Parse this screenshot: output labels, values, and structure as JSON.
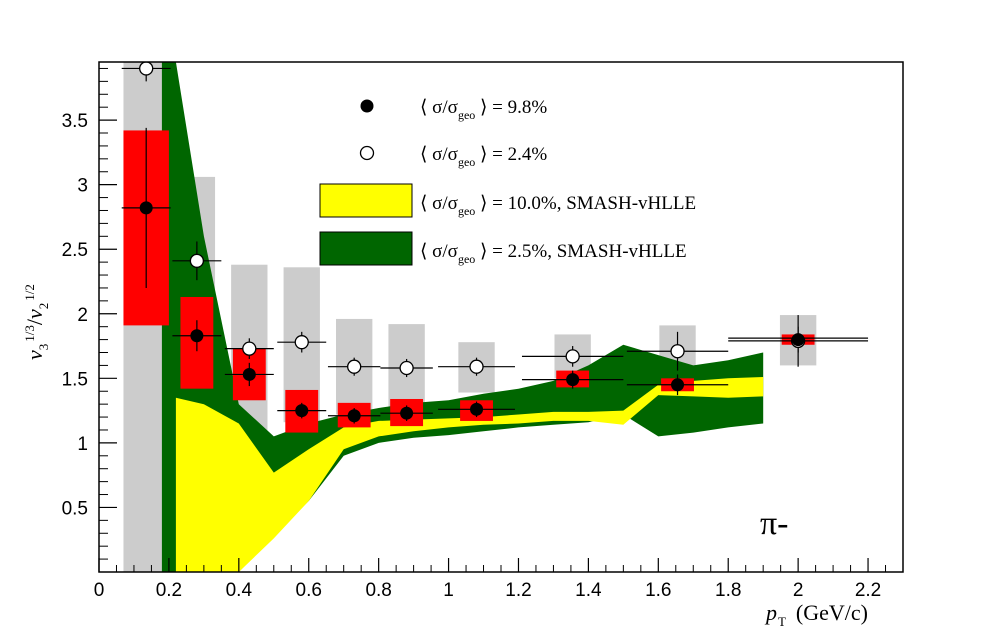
{
  "chart_data": {
    "type": "scatter",
    "title": "",
    "xlabel": "p_T (GeV/c)",
    "ylabel": "v_3^{1/3}/v_2^{1/2}",
    "xlim": [
      0,
      2.3
    ],
    "ylim": [
      0,
      3.95
    ],
    "x_ticks": [
      0,
      0.2,
      0.4,
      0.6,
      0.8,
      1,
      1.2,
      1.4,
      1.6,
      1.8,
      2,
      2.2
    ],
    "x_tick_labels": [
      "0",
      "0.2",
      "0.4",
      "0.6",
      "0.8",
      "1",
      "1.2",
      "1.4",
      "1.6",
      "1.8",
      "2",
      "2.2"
    ],
    "y_ticks": [
      0.5,
      1,
      1.5,
      2,
      2.5,
      3,
      3.5
    ],
    "y_tick_labels": [
      "0.5",
      "1",
      "1.5",
      "2",
      "2.5",
      "3",
      "3.5"
    ],
    "annotation": "π-",
    "axis_labels": {
      "x_main": "p",
      "x_sub": "T",
      "x_unit": "(GeV/c)",
      "y_v3": "v",
      "y_v3_sub": "3",
      "y_v3_sup": "1/3",
      "y_slash": "/",
      "y_v2": "v",
      "y_v2_sub": "2",
      "y_v2_sup": "1/2"
    },
    "legend": [
      {
        "key": "filled",
        "text": "⟨ σ/σgeo ⟩ = 9.8%",
        "pre": "⟨ σ/σ",
        "sub": "geo",
        "post": " ⟩ = 9.8%"
      },
      {
        "key": "open",
        "text": "⟨ σ/σgeo ⟩ = 2.4%",
        "pre": "⟨ σ/σ",
        "sub": "geo",
        "post": " ⟩ = 2.4%"
      },
      {
        "key": "yellow",
        "text": "⟨ σ/σgeo ⟩ = 10.0%, SMASH-vHLLE",
        "pre": "⟨ σ/σ",
        "sub": "geo",
        "post": " ⟩ = 10.0%, SMASH-vHLLE"
      },
      {
        "key": "green",
        "text": "⟨ σ/σgeo ⟩ = 2.5%, SMASH-vHLLE",
        "pre": "⟨ σ/σ",
        "sub": "geo",
        "post": " ⟩ = 2.5%, SMASH-vHLLE"
      }
    ],
    "series": [
      {
        "name": "⟨ σ/σgeo ⟩ = 9.8%",
        "marker": "filled-circle",
        "sys_color": "#ff0000",
        "points": [
          {
            "x": 0.135,
            "y": 2.82,
            "xerr": 0.07,
            "yerr": 0.62,
            "sys_lo": 1.91,
            "sys_hi": 3.42
          },
          {
            "x": 0.28,
            "y": 1.83,
            "xerr": 0.07,
            "yerr": 0.12,
            "sys_lo": 1.42,
            "sys_hi": 2.13
          },
          {
            "x": 0.43,
            "y": 1.53,
            "xerr": 0.07,
            "yerr": 0.09,
            "sys_lo": 1.33,
            "sys_hi": 1.73
          },
          {
            "x": 0.58,
            "y": 1.25,
            "xerr": 0.07,
            "yerr": 0.06,
            "sys_lo": 1.08,
            "sys_hi": 1.41
          },
          {
            "x": 0.73,
            "y": 1.21,
            "xerr": 0.075,
            "yerr": 0.06,
            "sys_lo": 1.12,
            "sys_hi": 1.31
          },
          {
            "x": 0.88,
            "y": 1.23,
            "xerr": 0.075,
            "yerr": 0.06,
            "sys_lo": 1.13,
            "sys_hi": 1.34
          },
          {
            "x": 1.08,
            "y": 1.26,
            "xerr": 0.11,
            "yerr": 0.06,
            "sys_lo": 1.17,
            "sys_hi": 1.33
          },
          {
            "x": 1.355,
            "y": 1.49,
            "xerr": 0.145,
            "yerr": 0.07,
            "sys_lo": 1.43,
            "sys_hi": 1.56
          },
          {
            "x": 1.655,
            "y": 1.45,
            "xerr": 0.145,
            "yerr": 0.08,
            "sys_lo": 1.4,
            "sys_hi": 1.5
          },
          {
            "x": 2.0,
            "y": 1.8,
            "xerr": 0.2,
            "yerr": 0.1,
            "sys_lo": 1.76,
            "sys_hi": 1.84
          }
        ]
      },
      {
        "name": "⟨ σ/σgeo ⟩ = 2.4%",
        "marker": "open-circle",
        "sys_color": "#cccccc",
        "points": [
          {
            "x": 0.135,
            "y": 3.9,
            "xerr": 0.07,
            "yerr": 0.1,
            "sys_lo": 0.0,
            "sys_hi": 3.95
          },
          {
            "x": 0.28,
            "y": 2.41,
            "xerr": 0.07,
            "yerr": 0.15,
            "sys_lo": 1.77,
            "sys_hi": 3.06
          },
          {
            "x": 0.43,
            "y": 1.73,
            "xerr": 0.07,
            "yerr": 0.08,
            "sys_lo": 1.06,
            "sys_hi": 2.38
          },
          {
            "x": 0.58,
            "y": 1.78,
            "xerr": 0.07,
            "yerr": 0.08,
            "sys_lo": 1.16,
            "sys_hi": 2.36
          },
          {
            "x": 0.73,
            "y": 1.59,
            "xerr": 0.075,
            "yerr": 0.07,
            "sys_lo": 1.22,
            "sys_hi": 1.96
          },
          {
            "x": 0.88,
            "y": 1.58,
            "xerr": 0.075,
            "yerr": 0.07,
            "sys_lo": 1.24,
            "sys_hi": 1.92
          },
          {
            "x": 1.08,
            "y": 1.59,
            "xerr": 0.11,
            "yerr": 0.07,
            "sys_lo": 1.39,
            "sys_hi": 1.78
          },
          {
            "x": 1.355,
            "y": 1.67,
            "xerr": 0.145,
            "yerr": 0.08,
            "sys_lo": 1.5,
            "sys_hi": 1.84
          },
          {
            "x": 1.655,
            "y": 1.71,
            "xerr": 0.145,
            "yerr": 0.15,
            "sys_lo": 1.52,
            "sys_hi": 1.91
          },
          {
            "x": 2.0,
            "y": 1.79,
            "xerr": 0.2,
            "yerr": 0.2,
            "sys_lo": 1.6,
            "sys_hi": 1.99
          }
        ]
      }
    ],
    "bands": [
      {
        "name": "⟨ σ/σgeo ⟩ = 2.5%, SMASH-vHLLE",
        "color": "#006600",
        "x": [
          0.18,
          0.22,
          0.3,
          0.4,
          0.5,
          0.6,
          0.7,
          0.8,
          0.9,
          1.0,
          1.1,
          1.2,
          1.3,
          1.4,
          1.5,
          1.6,
          1.7,
          1.8,
          1.9
        ],
        "lower": [
          0.0,
          0.0,
          0.0,
          0.0,
          0.28,
          0.55,
          0.9,
          1.0,
          1.04,
          1.06,
          1.09,
          1.12,
          1.14,
          1.16,
          1.22,
          1.05,
          1.08,
          1.12,
          1.15
        ],
        "upper": [
          3.95,
          3.95,
          2.6,
          1.3,
          1.05,
          1.15,
          1.22,
          1.27,
          1.31,
          1.33,
          1.38,
          1.42,
          1.48,
          1.6,
          1.76,
          1.68,
          1.6,
          1.64,
          1.7
        ]
      },
      {
        "name": "⟨ σ/σgeo ⟩ = 10.0%, SMASH-vHLLE",
        "color": "#ffff00",
        "x": [
          0.22,
          0.3,
          0.4,
          0.5,
          0.6,
          0.7,
          0.8,
          0.9,
          1.0,
          1.1,
          1.2,
          1.3,
          1.4,
          1.5,
          1.6,
          1.7,
          1.8,
          1.9
        ],
        "lower": [
          0.0,
          0.0,
          0.0,
          0.26,
          0.55,
          0.95,
          1.05,
          1.09,
          1.12,
          1.14,
          1.15,
          1.17,
          1.17,
          1.14,
          1.37,
          1.36,
          1.35,
          1.36
        ],
        "upper": [
          1.35,
          1.3,
          1.15,
          0.77,
          0.95,
          1.12,
          1.17,
          1.18,
          1.19,
          1.2,
          1.22,
          1.24,
          1.24,
          1.25,
          1.45,
          1.48,
          1.5,
          1.51
        ]
      }
    ]
  }
}
